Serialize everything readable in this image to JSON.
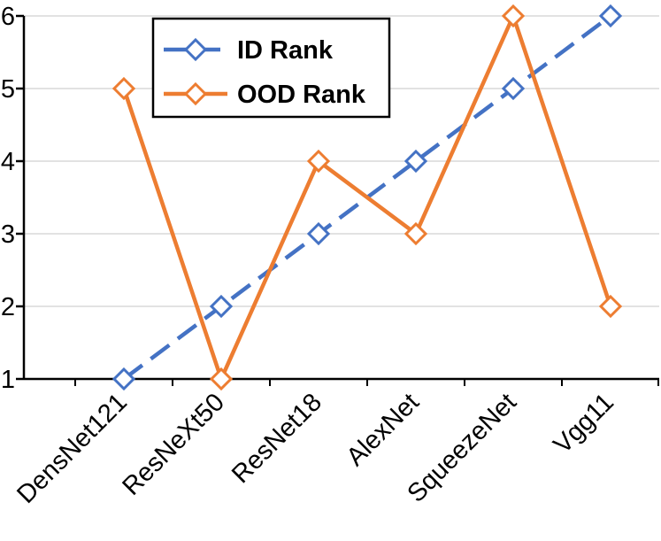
{
  "chart_data": {
    "type": "line",
    "title": "",
    "xlabel": "",
    "ylabel": "",
    "categories": [
      "DensNet121",
      "ResNeXt50",
      "ResNet18",
      "AlexNet",
      "SqueezeNet",
      "Vgg11"
    ],
    "ylim": [
      1,
      6
    ],
    "yticks": [
      1,
      2,
      3,
      4,
      5,
      6
    ],
    "grid": true,
    "legend_position": "top-left",
    "series": [
      {
        "name": "ID Rank",
        "values": [
          1,
          2,
          3,
          4,
          5,
          6
        ],
        "color": "#4472C4",
        "style": "dashed",
        "marker": "diamond"
      },
      {
        "name": "OOD Rank",
        "values": [
          5,
          1,
          4,
          3,
          6,
          2
        ],
        "color": "#ED7D31",
        "style": "solid",
        "marker": "diamond"
      }
    ]
  }
}
